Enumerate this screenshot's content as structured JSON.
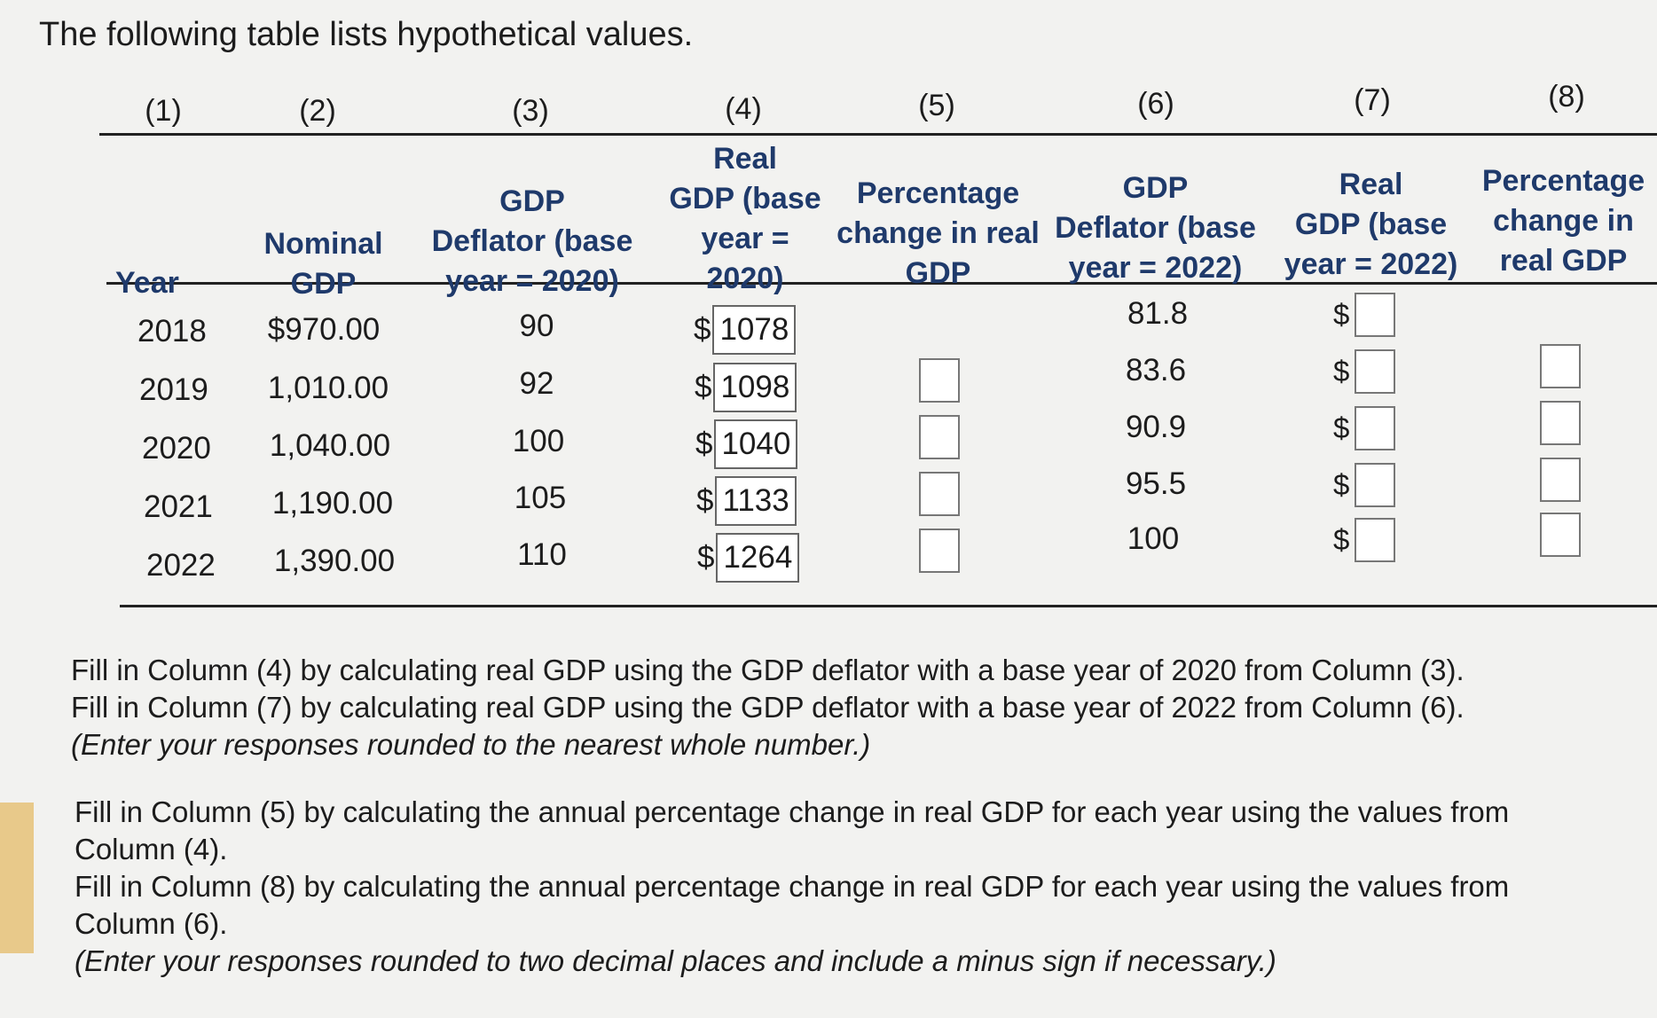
{
  "intro": "The following table lists hypothetical values.",
  "columns": {
    "numbers": [
      "(1)",
      "(2)",
      "(3)",
      "(4)",
      "(5)",
      "(6)",
      "(7)",
      "(8)"
    ],
    "c1": "Year",
    "c2": [
      "Nominal",
      "GDP"
    ],
    "c3": [
      "GDP",
      "Deflator (base",
      "year = 2020)"
    ],
    "c4": [
      "Real",
      "GDP (base",
      "year =",
      "2020)"
    ],
    "c5": [
      "Percentage",
      "change in real",
      "GDP"
    ],
    "c6": [
      "GDP",
      "Deflator (base",
      "year = 2022)"
    ],
    "c7": [
      "Real",
      "GDP (base",
      "year = 2022)"
    ],
    "c8": [
      "Percentage",
      "change in",
      "real GDP"
    ]
  },
  "rows": [
    {
      "year": "2018",
      "nominal": "$970.00",
      "deflator2020": "90",
      "real2020": "1078",
      "deflator2022": "81.8"
    },
    {
      "year": "2019",
      "nominal": "1,010.00",
      "deflator2020": "92",
      "real2020": "1098",
      "deflator2022": "83.6"
    },
    {
      "year": "2020",
      "nominal": "1,040.00",
      "deflator2020": "100",
      "real2020": "1040",
      "deflator2022": "90.9"
    },
    {
      "year": "2021",
      "nominal": "1,190.00",
      "deflator2020": "105",
      "real2020": "1133",
      "deflator2022": "95.5"
    },
    {
      "year": "2022",
      "nominal": "1,390.00",
      "deflator2020": "110",
      "real2020": "1264",
      "deflator2022": "100"
    }
  ],
  "currency": "$",
  "instructions": {
    "p1_line1": "Fill in Column (4) by calculating real GDP using the GDP deflator with a base year of 2020 from Column (3).",
    "p1_line2": "Fill in Column (7) by calculating real GDP using the GDP deflator with a base year of 2022 from Column (6).",
    "p1_note": "(Enter your responses rounded to the nearest whole number.)",
    "p2_line1": "Fill in Column (5) by calculating the annual percentage change in real GDP for each year using the values from",
    "p2_line1b": "Column (4).",
    "p2_line2": "Fill in Column (8) by calculating the annual percentage change in real GDP for each year using the values from",
    "p2_line2b": "Column (6).",
    "p2_note": "(Enter your responses rounded to two decimal places and include a minus sign if necessary.)"
  }
}
